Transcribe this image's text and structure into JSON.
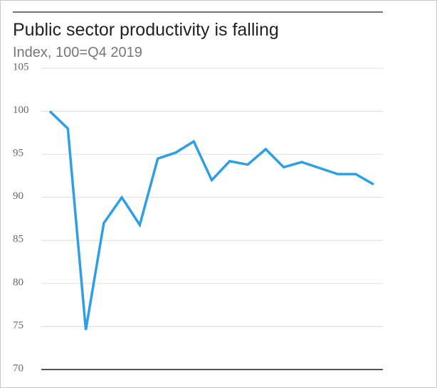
{
  "chart_data": {
    "type": "line",
    "title": "Public sector productivity is falling",
    "subtitle": "Index, 100=Q4 2019",
    "values": [
      100,
      98,
      74.6,
      87,
      90,
      86.8,
      94.5,
      95.2,
      96.5,
      92,
      94.2,
      93.8,
      95.6,
      93.5,
      94.1,
      93.4,
      92.7,
      92.7,
      91.5
    ],
    "color": "#2e9fe6",
    "ylim": [
      70,
      105
    ],
    "yticks": [
      70,
      75,
      80,
      85,
      90,
      95,
      100,
      105
    ],
    "grid": true
  }
}
